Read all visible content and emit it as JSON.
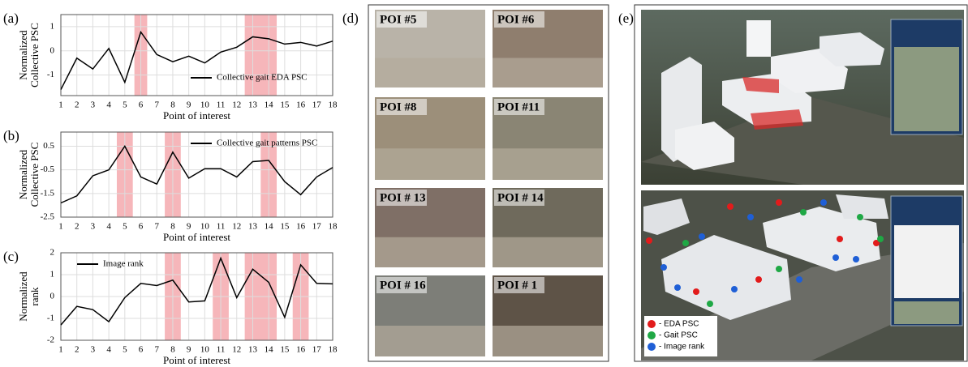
{
  "chart_data": [
    {
      "type": "line",
      "panel_label": "(a)",
      "xlabel": "Point of interest",
      "ylabel": [
        "Normalized",
        "Collective PSC"
      ],
      "x": [
        1,
        2,
        3,
        4,
        5,
        6,
        7,
        8,
        9,
        10,
        11,
        12,
        13,
        14,
        15,
        16,
        17,
        18
      ],
      "series": [
        {
          "name": "Collective gait EDA PSC",
          "color": "#000000",
          "values": [
            -1.6,
            -0.3,
            -0.75,
            0.1,
            -1.3,
            0.78,
            -0.15,
            -0.45,
            -0.22,
            -0.5,
            -0.05,
            0.15,
            0.58,
            0.5,
            0.28,
            0.35,
            0.2,
            0.4
          ]
        }
      ],
      "highlights": [
        [
          5.6,
          6.4
        ],
        [
          12.5,
          14.5
        ]
      ],
      "highlight_color": "#f4a9ae",
      "xlim": [
        1,
        18
      ],
      "xticks": [
        1,
        2,
        3,
        4,
        5,
        6,
        7,
        8,
        9,
        10,
        11,
        12,
        13,
        14,
        15,
        16,
        17,
        18
      ],
      "ylim": [
        -1.85,
        1.5
      ],
      "yticks": [
        1,
        0,
        -1
      ],
      "grid": true,
      "legend": "lower right"
    },
    {
      "type": "line",
      "panel_label": "(b)",
      "xlabel": "Point of interest",
      "ylabel": [
        "Normalized",
        "Collective PSC"
      ],
      "x": [
        1,
        2,
        3,
        4,
        5,
        6,
        7,
        8,
        9,
        10,
        11,
        12,
        13,
        14,
        15,
        16,
        17,
        18
      ],
      "series": [
        {
          "name": "Collective gait patterns PSC",
          "color": "#000000",
          "values": [
            -1.9,
            -1.6,
            -0.75,
            -0.5,
            0.5,
            -0.8,
            -1.1,
            0.25,
            -0.85,
            -0.45,
            -0.45,
            -0.8,
            -0.15,
            -0.1,
            -1.0,
            -1.55,
            -0.8,
            -0.4
          ]
        }
      ],
      "highlights": [
        [
          4.5,
          5.5
        ],
        [
          7.5,
          8.5
        ],
        [
          13.5,
          14.5
        ]
      ],
      "highlight_color": "#f4a9ae",
      "xlim": [
        1,
        18
      ],
      "xticks": [
        1,
        2,
        3,
        4,
        5,
        6,
        7,
        8,
        9,
        10,
        11,
        12,
        13,
        14,
        15,
        16,
        17,
        18
      ],
      "ylim": [
        -2.5,
        1.1
      ],
      "yticks": [
        0.5,
        -0.5,
        -1.5,
        -2.5
      ],
      "grid": true,
      "legend": "upper right"
    },
    {
      "type": "line",
      "panel_label": "(c)",
      "xlabel": "Point of interest",
      "ylabel": [
        "Normalized",
        "rank"
      ],
      "x": [
        1,
        2,
        3,
        4,
        5,
        6,
        7,
        8,
        9,
        10,
        11,
        12,
        13,
        14,
        15,
        16,
        17,
        18
      ],
      "series": [
        {
          "name": "Image rank",
          "color": "#000000",
          "values": [
            -1.3,
            -0.45,
            -0.6,
            -1.15,
            -0.05,
            0.6,
            0.5,
            0.75,
            -0.25,
            -0.2,
            1.75,
            -0.05,
            1.25,
            0.65,
            -0.95,
            1.45,
            0.6,
            0.58
          ]
        }
      ],
      "highlights": [
        [
          7.5,
          8.5
        ],
        [
          10.5,
          11.5
        ],
        [
          12.5,
          14.5
        ],
        [
          15.5,
          16.5
        ]
      ],
      "highlight_color": "#f4a9ae",
      "xlim": [
        1,
        18
      ],
      "xticks": [
        1,
        2,
        3,
        4,
        5,
        6,
        7,
        8,
        9,
        10,
        11,
        12,
        13,
        14,
        15,
        16,
        17,
        18
      ],
      "ylim": [
        -2,
        2
      ],
      "yticks": [
        2,
        1,
        0,
        -1,
        -2
      ],
      "grid": true,
      "legend": "upper left"
    }
  ],
  "photos": {
    "panel_label": "(d)",
    "items": [
      "POI #5",
      "POI #6",
      "POI #8",
      "POI #11",
      "POI # 13",
      "POI # 14",
      "POI # 16",
      "POI # 1"
    ]
  },
  "map": {
    "panel_label": "(e)",
    "legend": [
      {
        "label": "- EDA PSC",
        "color": "#e21b1b"
      },
      {
        "label": "- Gait PSC",
        "color": "#1fa845"
      },
      {
        "label": "- Image rank",
        "color": "#1f5fd6"
      }
    ]
  }
}
